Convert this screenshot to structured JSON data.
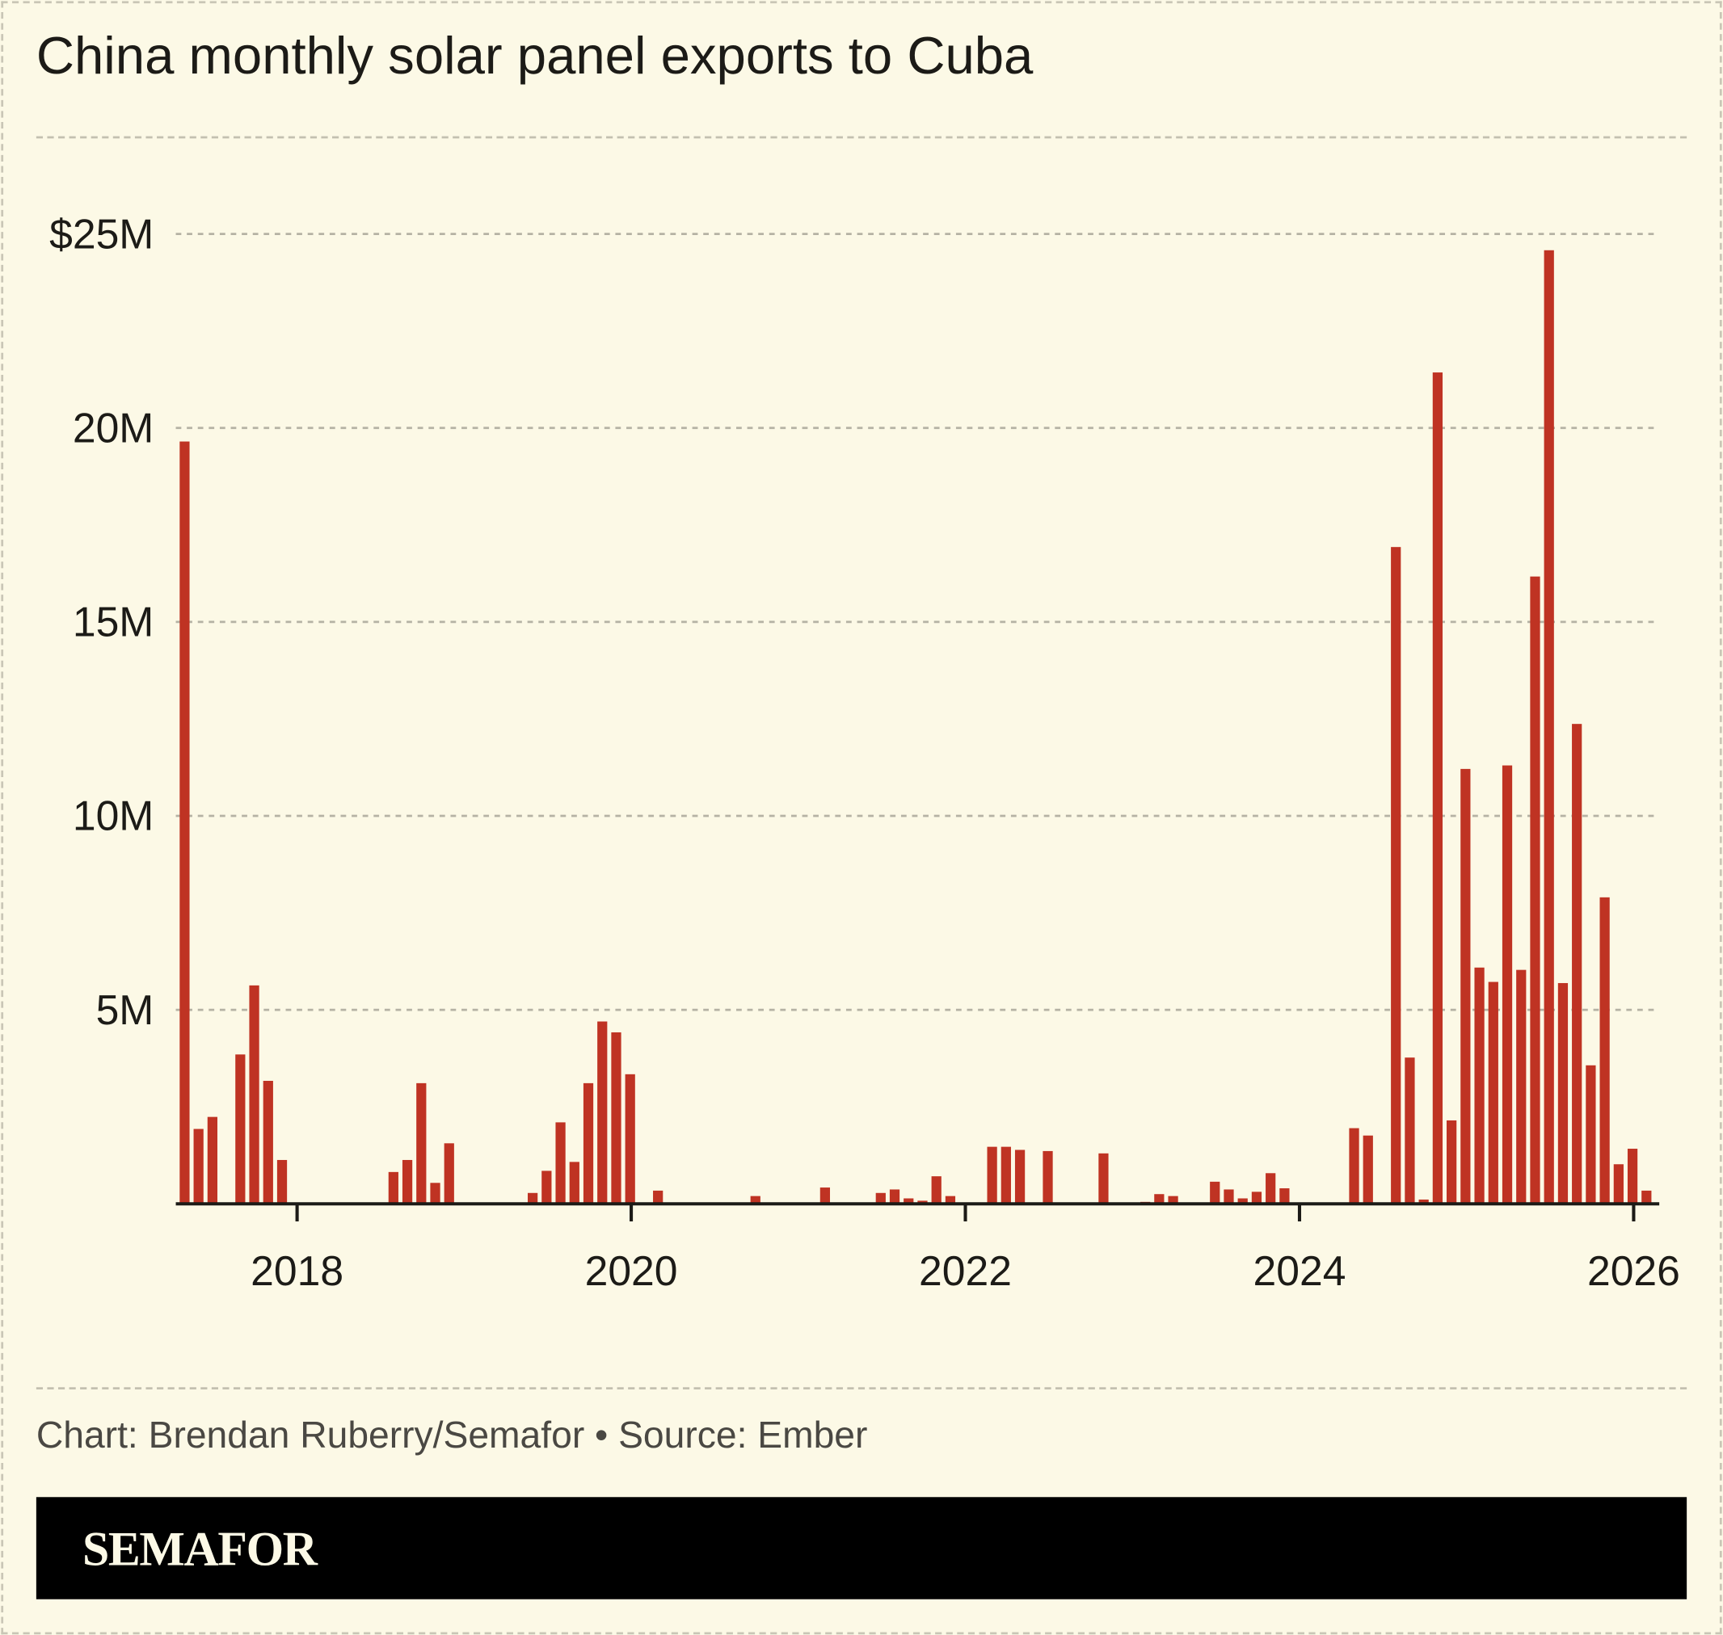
{
  "title": "China monthly solar panel exports to Cuba",
  "credit": "Chart: Brendan Ruberry/Semafor • Source: Ember",
  "logo": "SEMAFOR",
  "colors": {
    "background": "#fcf9e6",
    "bar": "#bf3323",
    "grid": "#b5b2a4",
    "footer": "#000000"
  },
  "chart_data": {
    "type": "bar",
    "title": "China monthly solar panel exports to Cuba",
    "xlabel": "",
    "ylabel": "",
    "unit": "USD millions",
    "ylim": [
      0,
      25
    ],
    "grid": true,
    "yticks": [
      {
        "value": 5,
        "label": "5M"
      },
      {
        "value": 10,
        "label": "10M"
      },
      {
        "value": 15,
        "label": "15M"
      },
      {
        "value": 20,
        "label": "20M"
      },
      {
        "value": 25,
        "label": "$25M"
      }
    ],
    "xticks": [
      "2018",
      "2020",
      "2022",
      "2024",
      "2026"
    ],
    "start_month": "2017-05",
    "end_month": "2026-02",
    "values": [
      19.65,
      1.93,
      2.24,
      0,
      3.85,
      5.63,
      3.17,
      1.13,
      0,
      0,
      0,
      0,
      0,
      0,
      0,
      0.82,
      1.13,
      3.11,
      0.54,
      1.56,
      0,
      0,
      0,
      0,
      0,
      0.28,
      0.85,
      2.1,
      1.08,
      3.11,
      4.7,
      4.42,
      3.34,
      0,
      0.34,
      0,
      0,
      0,
      0,
      0,
      0,
      0.2,
      0,
      0,
      0,
      0,
      0.42,
      0,
      0.03,
      0,
      0.28,
      0.37,
      0.14,
      0.08,
      0.71,
      0.2,
      0,
      0,
      1.47,
      1.47,
      1.39,
      0,
      1.36,
      0,
      0,
      0,
      1.3,
      0,
      0,
      0.05,
      0.25,
      0.2,
      0,
      0,
      0.57,
      0.37,
      0.14,
      0.31,
      0.79,
      0.4,
      0,
      0,
      0,
      0,
      1.95,
      1.76,
      0,
      16.93,
      3.77,
      0.11,
      21.43,
      2.15,
      11.21,
      6.09,
      5.72,
      11.3,
      6.03,
      16.17,
      24.58,
      5.69,
      12.37,
      3.57,
      7.9,
      1.02,
      1.42,
      0.34
    ]
  }
}
